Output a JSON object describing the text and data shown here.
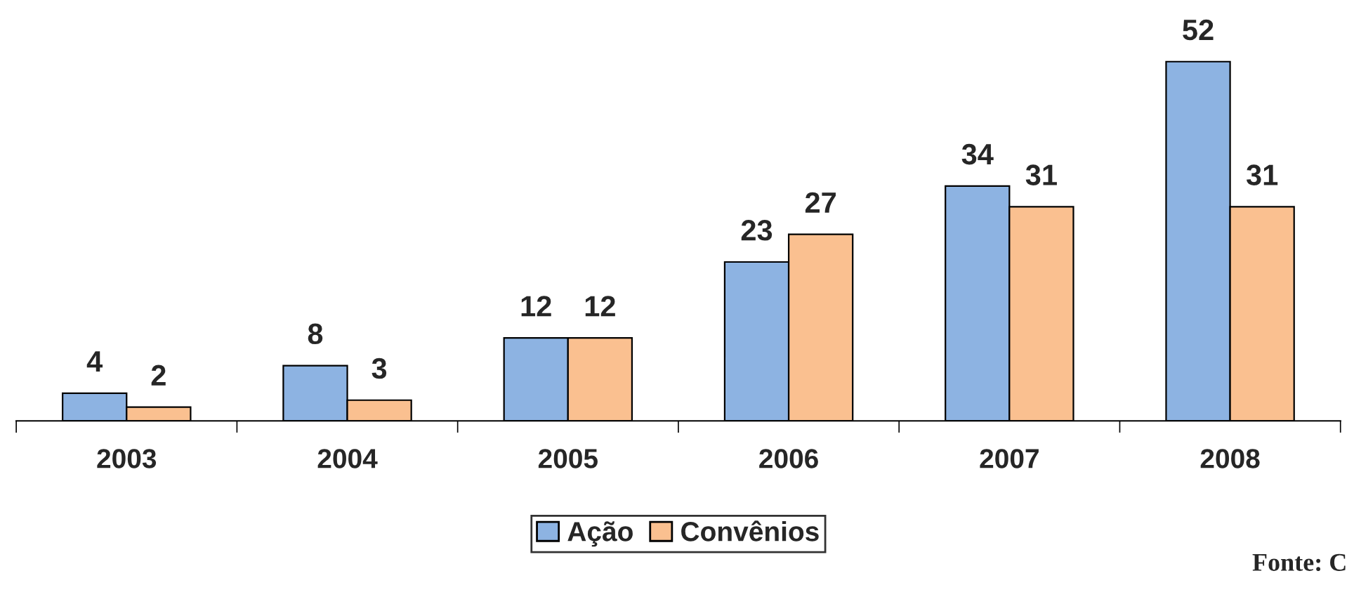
{
  "chart_data": {
    "type": "bar",
    "categories": [
      "2003",
      "2004",
      "2005",
      "2006",
      "2007",
      "2008"
    ],
    "series": [
      {
        "name": "Ação",
        "color": "#8db3e2",
        "values": [
          4,
          8,
          12,
          23,
          34,
          52
        ]
      },
      {
        "name": "Convênios",
        "color": "#fac090",
        "values": [
          2,
          3,
          12,
          27,
          31,
          31
        ]
      }
    ],
    "data_labels": true,
    "legend": "bottom",
    "grid": false,
    "tick_labels": "x",
    "annotations": [
      "Fonte: C"
    ]
  }
}
